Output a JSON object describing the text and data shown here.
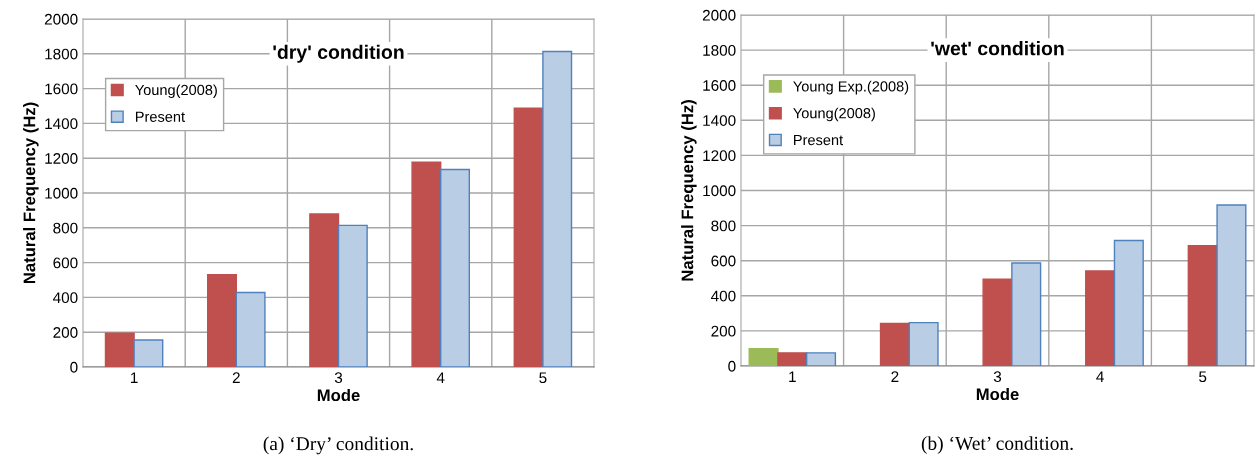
{
  "chart_data": [
    {
      "type": "bar",
      "title": "'dry' condition",
      "xlabel": "Mode",
      "ylabel": "Natural Frequency (Hz)",
      "categories": [
        "1",
        "2",
        "3",
        "4",
        "5"
      ],
      "series": [
        {
          "name": "Young(2008)",
          "color": "#c0504d",
          "values": [
            194,
            530,
            879,
            1177,
            1487
          ]
        },
        {
          "name": "Present",
          "color": "#b9cde5",
          "values": [
            155,
            428,
            814,
            1135,
            1813
          ]
        }
      ],
      "ylim": [
        0,
        2000
      ],
      "yticks": [
        0,
        200,
        400,
        600,
        800,
        1000,
        1200,
        1400,
        1600,
        1800,
        2000
      ],
      "grid": true,
      "legend": "top left",
      "annotations": [
        "(a) ‘Dry’ condition."
      ]
    },
    {
      "type": "bar",
      "title": "'wet' condition",
      "xlabel": "Mode",
      "ylabel": "Natural Frequency (Hz)",
      "categories": [
        "1",
        "2",
        "3",
        "4",
        "5"
      ],
      "series": [
        {
          "name": "Young Exp.(2008)",
          "color": "#9bbb59",
          "values": [
            98,
            null,
            null,
            null,
            null
          ]
        },
        {
          "name": "Young(2008)",
          "color": "#c0504d",
          "values": [
            75,
            242,
            494,
            542,
            686
          ]
        },
        {
          "name": "Present",
          "color": "#b9cde5",
          "values": [
            75,
            247,
            587,
            715,
            917
          ]
        }
      ],
      "ylim": [
        0,
        2000
      ],
      "yticks": [
        0,
        200,
        400,
        600,
        800,
        1000,
        1200,
        1400,
        1600,
        1800,
        2000
      ],
      "grid": true,
      "legend": "top left",
      "annotations": [
        "(b) ‘Wet’ condition."
      ]
    }
  ]
}
